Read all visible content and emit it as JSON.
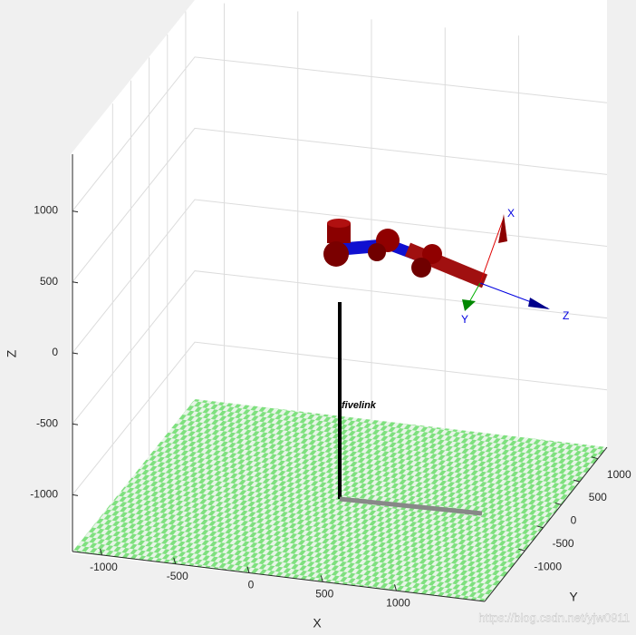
{
  "chart_data": {
    "type": "robot3d",
    "xlabel": "X",
    "ylabel": "Y",
    "zlabel": "Z",
    "xlim": [
      -1200,
      1600
    ],
    "ylim": [
      -2100,
      1250
    ],
    "zlim": [
      -1400,
      1400
    ],
    "xticks": [
      -1000,
      -500,
      0,
      500,
      1000
    ],
    "yticks": [
      -1000,
      -500,
      0,
      500,
      1000
    ],
    "zticks": [
      -1000,
      -500,
      0,
      500,
      1000
    ],
    "grid": true,
    "robot_name": "fivelink",
    "frame_labels": [
      "X",
      "Y",
      "Z"
    ],
    "watermark": "https://blog.csdn.net/yjw0911"
  }
}
